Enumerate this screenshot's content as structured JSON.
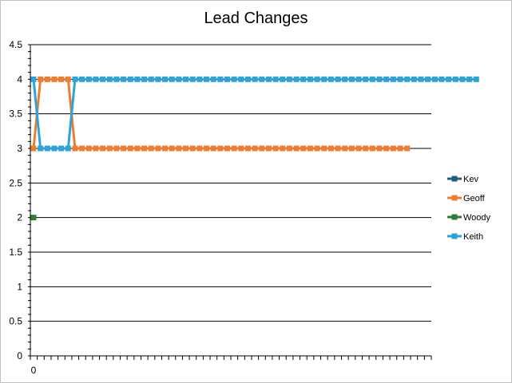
{
  "chart_data": {
    "type": "line",
    "title": "Lead Changes",
    "xlabel": "",
    "ylabel": "",
    "ylim": [
      0,
      4.5
    ],
    "y_ticks": [
      "0",
      "0.5",
      "1",
      "1.5",
      "2",
      "2.5",
      "3",
      "3.5",
      "4",
      "4.5"
    ],
    "x_ticks": [
      "0"
    ],
    "grid": true,
    "legend_position": "right",
    "series": [
      {
        "name": "Kev",
        "color": "#1f5f7f",
        "values": []
      },
      {
        "name": "Geoff",
        "color": "#ed7d31",
        "values": [
          3,
          4,
          4,
          4,
          4,
          4,
          3,
          3,
          3,
          3,
          3,
          3,
          3,
          3,
          3,
          3,
          3,
          3,
          3,
          3,
          3,
          3,
          3,
          3,
          3,
          3,
          3,
          3,
          3,
          3,
          3,
          3,
          3,
          3,
          3,
          3,
          3,
          3,
          3,
          3,
          3,
          3,
          3,
          3,
          3,
          3,
          3,
          3,
          3,
          3,
          3,
          3,
          3,
          3,
          3
        ]
      },
      {
        "name": "Woody",
        "color": "#2e7d32",
        "values": [
          2
        ]
      },
      {
        "name": "Keith",
        "color": "#2ea3d7",
        "values": [
          4,
          3,
          3,
          3,
          3,
          3,
          4,
          4,
          4,
          4,
          4,
          4,
          4,
          4,
          4,
          4,
          4,
          4,
          4,
          4,
          4,
          4,
          4,
          4,
          4,
          4,
          4,
          4,
          4,
          4,
          4,
          4,
          4,
          4,
          4,
          4,
          4,
          4,
          4,
          4,
          4,
          4,
          4,
          4,
          4,
          4,
          4,
          4,
          4,
          4,
          4,
          4,
          4,
          4,
          4,
          4,
          4,
          4,
          4,
          4,
          4,
          4,
          4,
          4,
          4
        ]
      }
    ]
  }
}
